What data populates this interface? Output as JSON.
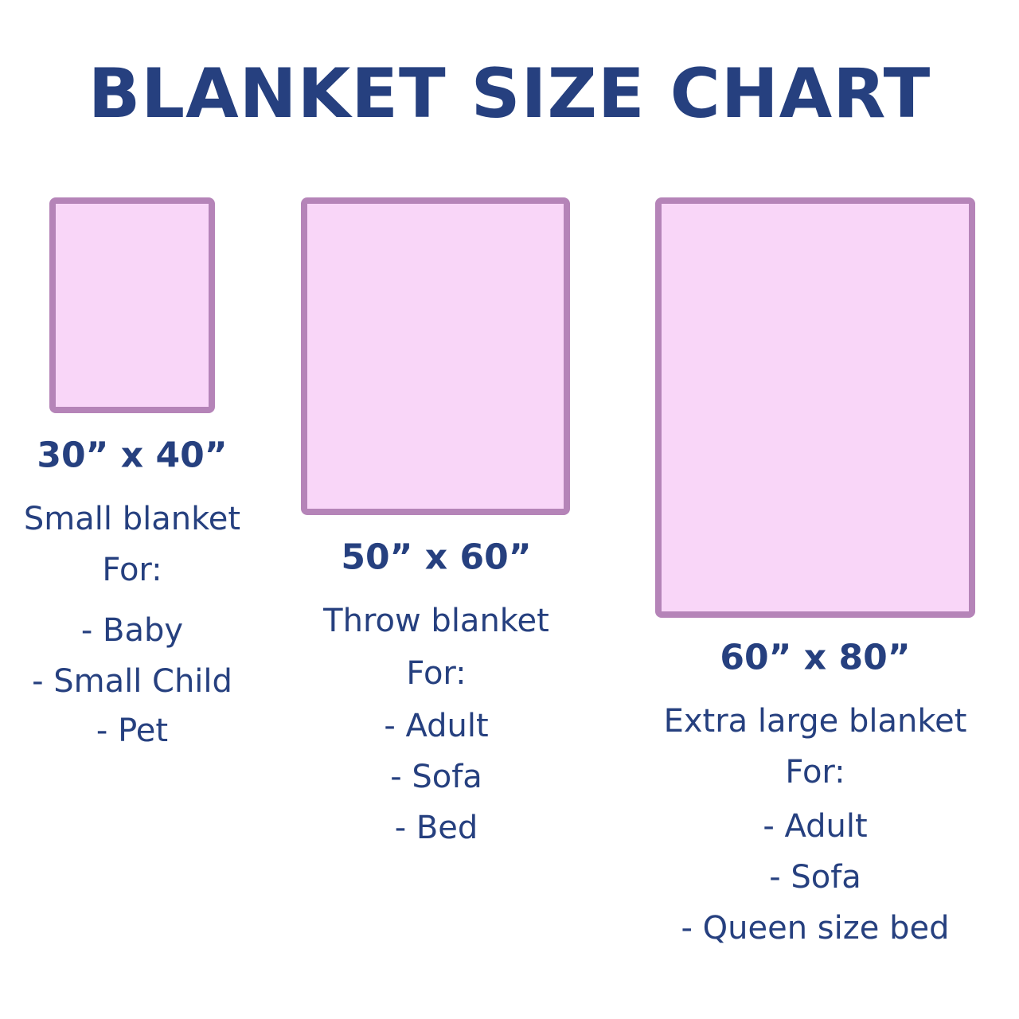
{
  "title": "BLANKET SIZE CHART",
  "colors": {
    "text": "#26407f",
    "box_fill": "#f9d6f8",
    "box_border": "#b584b8"
  },
  "blankets": [
    {
      "dimensions": "30” x 40”",
      "name": "Small blanket",
      "for_label": "For:",
      "uses": [
        "- Baby",
        "- Small Child",
        "- Pet"
      ]
    },
    {
      "dimensions": "50” x 60”",
      "name": "Throw blanket",
      "for_label": "For:",
      "uses": [
        "- Adult",
        "- Sofa",
        "- Bed"
      ]
    },
    {
      "dimensions": "60” x 80”",
      "name": "Extra large blanket",
      "for_label": "For:",
      "uses": [
        "- Adult",
        "- Sofa",
        "- Queen size bed"
      ]
    }
  ]
}
